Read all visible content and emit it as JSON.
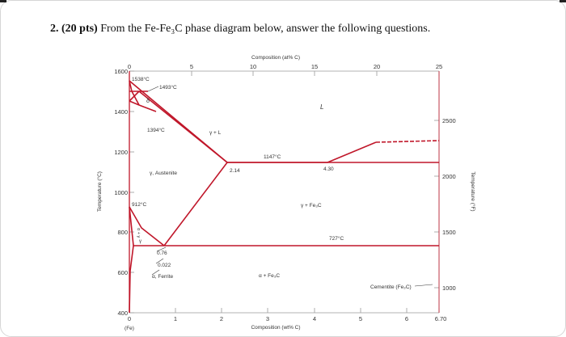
{
  "question": {
    "number": "2.",
    "points": "(20 pts)",
    "text": "From the Fe-Fe₃C phase diagram below, answer the following questions."
  },
  "chart_data": {
    "type": "diagram",
    "title": "",
    "x_bottom": {
      "label": "Composition (wt% C)",
      "ticks": [
        "0",
        "1",
        "2",
        "3",
        "4",
        "5",
        "6",
        "6.70"
      ],
      "sub_label": "(Fe)",
      "range": [
        0,
        6.7
      ]
    },
    "x_top": {
      "label": "Composition (at% C)",
      "ticks": [
        "0",
        "5",
        "10",
        "15",
        "20",
        "25"
      ],
      "range": [
        0,
        25
      ]
    },
    "y_left": {
      "label": "Temperature (°C)",
      "ticks": [
        "1600",
        "1400",
        "1200",
        "1000",
        "800",
        "600",
        "400"
      ],
      "range": [
        400,
        1600
      ]
    },
    "y_right": {
      "label": "Temperature (°F)",
      "ticks": [
        "2500",
        "2000",
        "1500",
        "1000"
      ]
    },
    "temperatures": {
      "melting": "1538°C",
      "peritectic": "1493°C",
      "delta_gamma": "1394°C",
      "eutectic": "1147°C",
      "alpha_gamma": "912°C",
      "eutectoid": "727°C"
    },
    "compositions": {
      "max_gamma": "2.14",
      "eutectic": "4.30",
      "eutectoid": "0.76",
      "max_alpha": "0.022"
    },
    "phases": {
      "liquid": "L",
      "delta": "δ",
      "gamma_liquid": "γ + L",
      "austenite": "γ, Austenite",
      "gamma_cementite": "γ + Fe₃C",
      "alpha_gamma": "α + γ",
      "gamma": "γ",
      "ferrite": "α, Ferrite",
      "alpha_cementite": "α + Fe₃C",
      "cementite": "Cementite (Fe₃C)"
    },
    "grid": false
  }
}
